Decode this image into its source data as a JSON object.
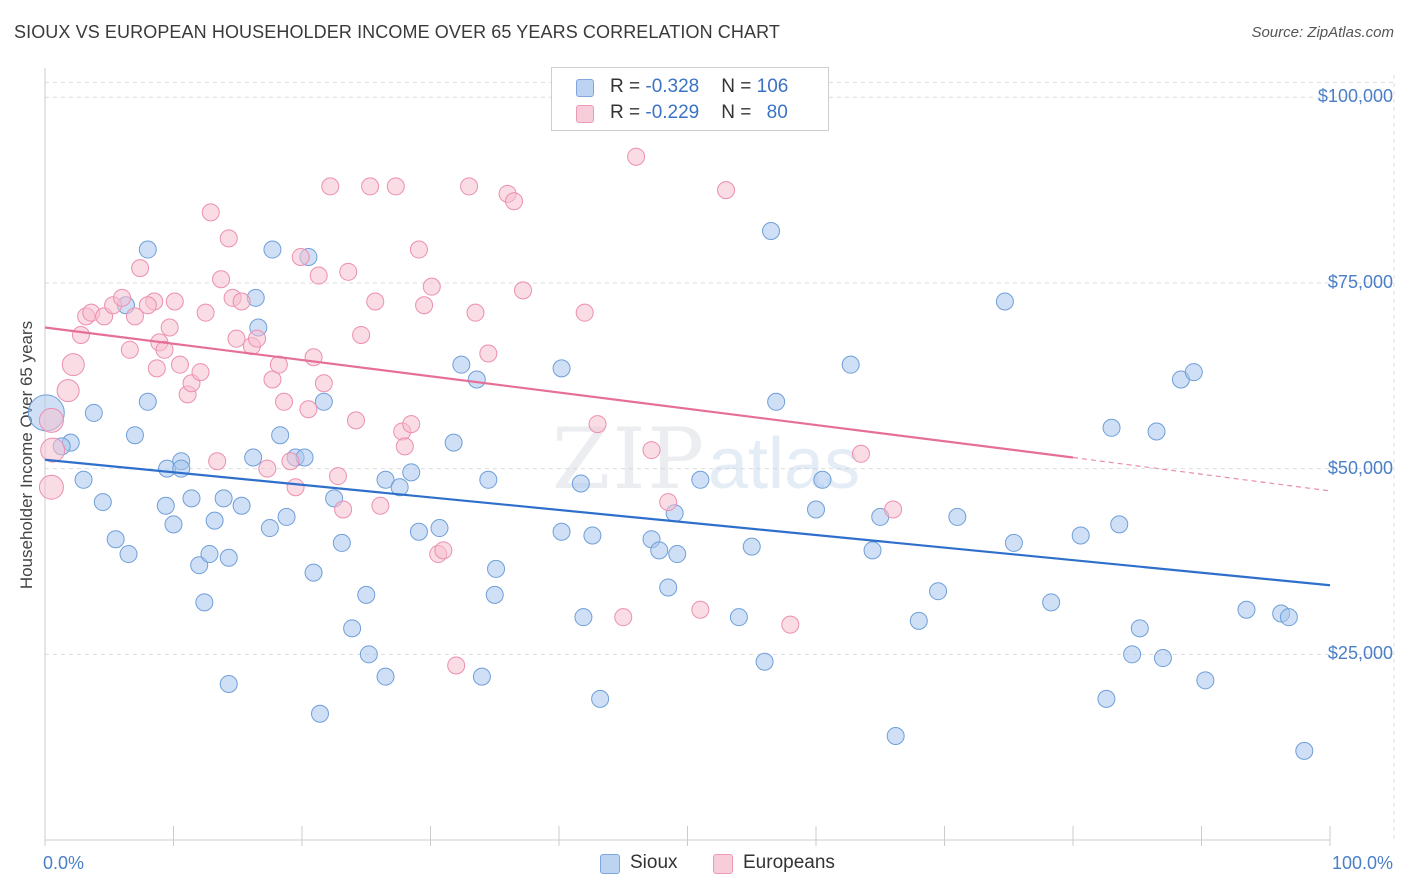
{
  "title": "SIOUX VS EUROPEAN HOUSEHOLDER INCOME OVER 65 YEARS CORRELATION CHART",
  "source": "Source: ZipAtlas.com",
  "watermark": {
    "zip": "ZIP",
    "atlas": "atlas"
  },
  "legend": {
    "sioux": {
      "r_label": "R = ",
      "r_value": "-0.328",
      "n_label": "N = ",
      "n_value": "106"
    },
    "europeans": {
      "r_label": "R = ",
      "r_value": "-0.229",
      "n_label": "N = ",
      "n_value": "80"
    }
  },
  "bottom_legend": {
    "sioux": "Sioux",
    "europeans": "Europeans"
  },
  "colors": {
    "sioux_fill": "#a8c6ee",
    "sioux_stroke": "#6f9fd8",
    "sioux_line": "#2f6fcc",
    "europeans_fill": "#f6bfd0",
    "europeans_stroke": "#ec8fb0",
    "europeans_line": "#e56f98",
    "axis_text": "#4a7fc8",
    "grid": "#dddddd"
  },
  "chart_data": {
    "type": "scatter",
    "title": "SIOUX VS EUROPEAN HOUSEHOLDER INCOME OVER 65 YEARS CORRELATION CHART",
    "xlabel": "",
    "ylabel": "Householder Income Over 65 years",
    "xlim": [
      0,
      100
    ],
    "ylim": [
      0,
      103000
    ],
    "x_tick_labels": [
      "0.0%",
      "100.0%"
    ],
    "y_ticks": [
      25000,
      50000,
      75000,
      100000
    ],
    "y_tick_labels": [
      "$25,000",
      "$50,000",
      "$75,000",
      "$100,000"
    ],
    "grid": true,
    "series": [
      {
        "name": "Sioux",
        "r": -0.328,
        "n": 106,
        "trend": {
          "x": [
            0,
            100
          ],
          "y": [
            51200,
            34300
          ]
        },
        "points": [
          [
            0.1,
            57500
          ],
          [
            2,
            53500
          ],
          [
            1.3,
            53000
          ],
          [
            3,
            48500
          ],
          [
            3.8,
            57500
          ],
          [
            4.5,
            45500
          ],
          [
            5.5,
            40500
          ],
          [
            6.5,
            38500
          ],
          [
            7,
            54500
          ],
          [
            6.3,
            72000
          ],
          [
            8,
            59000
          ],
          [
            8,
            79500
          ],
          [
            9.5,
            50000
          ],
          [
            9.4,
            45000
          ],
          [
            10,
            42500
          ],
          [
            10.6,
            51000
          ],
          [
            10.6,
            50000
          ],
          [
            11.4,
            46000
          ],
          [
            12,
            37000
          ],
          [
            12.4,
            32000
          ],
          [
            12.8,
            38500
          ],
          [
            13.2,
            43000
          ],
          [
            13.9,
            46000
          ],
          [
            14.3,
            38000
          ],
          [
            15.3,
            45000
          ],
          [
            14.3,
            21000
          ],
          [
            16.2,
            51500
          ],
          [
            16.4,
            73000
          ],
          [
            16.6,
            69000
          ],
          [
            17.5,
            42000
          ],
          [
            17.7,
            79500
          ],
          [
            18.3,
            54500
          ],
          [
            18.8,
            43500
          ],
          [
            19.5,
            51500
          ],
          [
            20.2,
            51500
          ],
          [
            20.5,
            78500
          ],
          [
            20.9,
            36000
          ],
          [
            21.7,
            59000
          ],
          [
            21.4,
            17000
          ],
          [
            22.5,
            46000
          ],
          [
            23.1,
            40000
          ],
          [
            23.9,
            28500
          ],
          [
            25,
            33000
          ],
          [
            25.2,
            25000
          ],
          [
            26.5,
            48500
          ],
          [
            26.5,
            22000
          ],
          [
            27.6,
            47500
          ],
          [
            28.5,
            49500
          ],
          [
            29.1,
            41500
          ],
          [
            30.7,
            42000
          ],
          [
            31.8,
            53500
          ],
          [
            32.4,
            64000
          ],
          [
            33.6,
            62000
          ],
          [
            34,
            22000
          ],
          [
            34.5,
            48500
          ],
          [
            35,
            33000
          ],
          [
            35.1,
            36500
          ],
          [
            40.2,
            63500
          ],
          [
            40.2,
            41500
          ],
          [
            41.7,
            48000
          ],
          [
            41.9,
            30000
          ],
          [
            42.6,
            41000
          ],
          [
            43.2,
            19000
          ],
          [
            47.2,
            40500
          ],
          [
            47.8,
            39000
          ],
          [
            48.5,
            34000
          ],
          [
            49.2,
            38500
          ],
          [
            49,
            44000
          ],
          [
            51,
            48500
          ],
          [
            54,
            30000
          ],
          [
            55,
            39500
          ],
          [
            56,
            24000
          ],
          [
            56.5,
            82000
          ],
          [
            56.9,
            59000
          ],
          [
            60,
            44500
          ],
          [
            60.5,
            48500
          ],
          [
            62.7,
            64000
          ],
          [
            64.4,
            39000
          ],
          [
            65,
            43500
          ],
          [
            66.2,
            14000
          ],
          [
            68,
            29500
          ],
          [
            69.5,
            33500
          ],
          [
            71,
            43500
          ],
          [
            74.7,
            72500
          ],
          [
            75.4,
            40000
          ],
          [
            78.3,
            32000
          ],
          [
            80.6,
            41000
          ],
          [
            83,
            55500
          ],
          [
            82.6,
            19000
          ],
          [
            83.6,
            42500
          ],
          [
            84.6,
            25000
          ],
          [
            85.2,
            28500
          ],
          [
            86.5,
            55000
          ],
          [
            87,
            24500
          ],
          [
            88.4,
            62000
          ],
          [
            89.4,
            63000
          ],
          [
            90.3,
            21500
          ],
          [
            93.5,
            31000
          ],
          [
            96.2,
            30500
          ],
          [
            96.8,
            30000
          ],
          [
            98,
            12000
          ]
        ]
      },
      {
        "name": "Europeans",
        "r": -0.229,
        "n": 80,
        "trend": {
          "x": [
            0,
            80
          ],
          "y": [
            69000,
            51500
          ],
          "dashed_extension": {
            "x": [
              80,
              100
            ],
            "y": [
              51500,
              47000
            ]
          }
        },
        "points": [
          [
            0.5,
            56500
          ],
          [
            0.6,
            52500
          ],
          [
            0.5,
            47500
          ],
          [
            1.8,
            60500
          ],
          [
            2.2,
            64000
          ],
          [
            2.8,
            68000
          ],
          [
            3.2,
            70500
          ],
          [
            3.6,
            71000
          ],
          [
            4.6,
            70500
          ],
          [
            5.3,
            72000
          ],
          [
            6,
            73000
          ],
          [
            6.6,
            66000
          ],
          [
            7,
            70500
          ],
          [
            8.5,
            72500
          ],
          [
            7.4,
            77000
          ],
          [
            8,
            72000
          ],
          [
            8.7,
            63500
          ],
          [
            8.9,
            67000
          ],
          [
            9.3,
            66000
          ],
          [
            9.7,
            69000
          ],
          [
            10.1,
            72500
          ],
          [
            10.5,
            64000
          ],
          [
            11.1,
            60000
          ],
          [
            11.4,
            61500
          ],
          [
            12.1,
            63000
          ],
          [
            12.5,
            71000
          ],
          [
            12.9,
            84500
          ],
          [
            13.4,
            51000
          ],
          [
            13.7,
            75500
          ],
          [
            14.3,
            81000
          ],
          [
            14.6,
            73000
          ],
          [
            14.9,
            67500
          ],
          [
            15.3,
            72500
          ],
          [
            16.1,
            66500
          ],
          [
            16.5,
            67500
          ],
          [
            17.3,
            50000
          ],
          [
            17.7,
            62000
          ],
          [
            18.2,
            64000
          ],
          [
            18.6,
            59000
          ],
          [
            19.1,
            51000
          ],
          [
            19.5,
            47500
          ],
          [
            19.9,
            78500
          ],
          [
            20.5,
            58000
          ],
          [
            20.9,
            65000
          ],
          [
            21.3,
            76000
          ],
          [
            21.7,
            61500
          ],
          [
            22.2,
            88000
          ],
          [
            22.8,
            49000
          ],
          [
            23.2,
            44500
          ],
          [
            23.6,
            76500
          ],
          [
            24.2,
            56500
          ],
          [
            24.6,
            68000
          ],
          [
            25.3,
            88000
          ],
          [
            25.7,
            72500
          ],
          [
            26.1,
            45000
          ],
          [
            27.3,
            88000
          ],
          [
            27.8,
            55000
          ],
          [
            28,
            53000
          ],
          [
            28.5,
            56000
          ],
          [
            29.1,
            79500
          ],
          [
            29.5,
            72000
          ],
          [
            30.1,
            74500
          ],
          [
            30.6,
            38500
          ],
          [
            31,
            39000
          ],
          [
            32,
            23500
          ],
          [
            33,
            88000
          ],
          [
            33.5,
            71000
          ],
          [
            34.5,
            65500
          ],
          [
            36,
            87000
          ],
          [
            36.5,
            86000
          ],
          [
            37.2,
            74000
          ],
          [
            42,
            71000
          ],
          [
            43,
            56000
          ],
          [
            45,
            30000
          ],
          [
            46,
            92000
          ],
          [
            47.2,
            52500
          ],
          [
            48.5,
            45500
          ],
          [
            51,
            31000
          ],
          [
            53,
            87500
          ],
          [
            58,
            29000
          ],
          [
            63.5,
            52000
          ],
          [
            66,
            44500
          ]
        ]
      }
    ]
  }
}
